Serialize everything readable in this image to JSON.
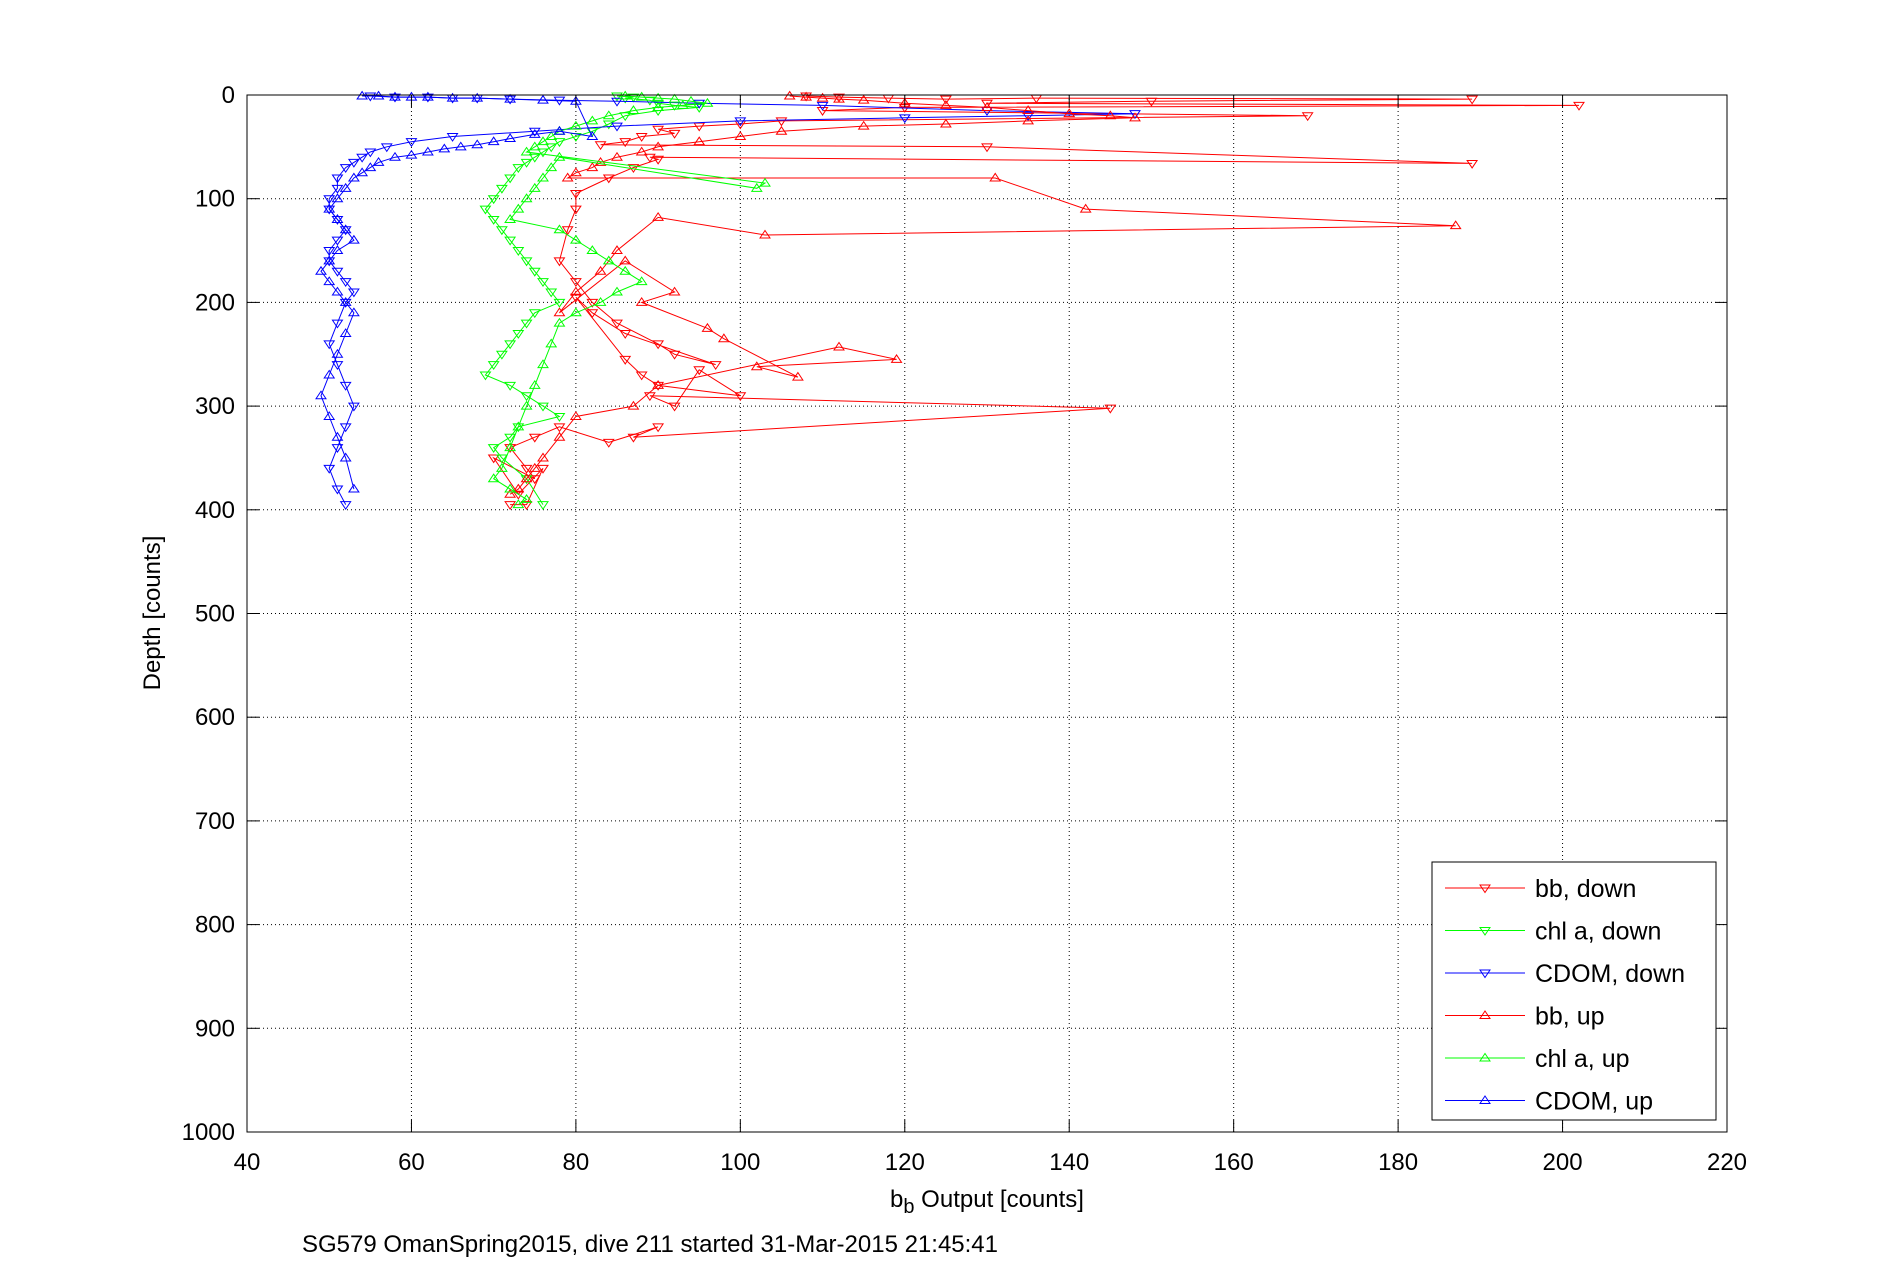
{
  "chart_data": {
    "type": "scatter",
    "title": "",
    "xlabel_main": "b",
    "xlabel_sub": "b",
    "xlabel_rest": " Output [counts]",
    "ylabel": "Depth [counts]",
    "caption": "SG579 OmanSpring2015, dive 211 started 31-Mar-2015 21:45:41",
    "xlim": [
      40,
      220
    ],
    "ylim": [
      0,
      1000
    ],
    "y_reversed": true,
    "grid": true,
    "legend_position": "bottom-right",
    "xticks": [
      "40",
      "60",
      "80",
      "100",
      "120",
      "140",
      "160",
      "180",
      "200",
      "220"
    ],
    "yticks": [
      "0",
      "100",
      "200",
      "300",
      "400",
      "500",
      "600",
      "700",
      "800",
      "900",
      "1000"
    ],
    "series": [
      {
        "name": "bb, down",
        "color": "#ff0000",
        "marker": "triangle-down",
        "x": [
          108,
          112,
          118,
          125,
          136,
          189,
          150,
          130,
          202,
          120,
          110,
          169,
          105,
          100,
          95,
          90,
          92,
          88,
          86,
          83,
          130,
          189,
          89,
          90,
          87,
          84,
          80,
          80,
          79,
          78,
          80,
          82,
          85,
          90,
          92,
          97,
          86,
          82,
          80,
          86,
          88,
          90,
          100,
          95,
          92,
          89,
          145,
          87,
          90,
          84,
          78,
          75,
          72,
          74,
          75,
          70,
          73,
          76,
          74,
          72
        ],
        "y": [
          1,
          2,
          3,
          4,
          3,
          4,
          6,
          8,
          10,
          12,
          15,
          20,
          25,
          28,
          30,
          33,
          37,
          40,
          45,
          48,
          50,
          66,
          60,
          62,
          70,
          80,
          95,
          110,
          130,
          160,
          180,
          200,
          220,
          240,
          250,
          260,
          230,
          210,
          195,
          255,
          270,
          280,
          290,
          265,
          300,
          290,
          302,
          330,
          320,
          335,
          320,
          330,
          340,
          360,
          370,
          350,
          385,
          360,
          395,
          395
        ]
      },
      {
        "name": "chl a, down",
        "color": "#00ff00",
        "marker": "triangle-down",
        "x": [
          85,
          87,
          86,
          89,
          90,
          92,
          95,
          90,
          86,
          84,
          82,
          80,
          78,
          77,
          76,
          75,
          74,
          73,
          72,
          71,
          70,
          69,
          70,
          71,
          72,
          73,
          74,
          75,
          76,
          77,
          78,
          75,
          74,
          73,
          72,
          71,
          70,
          69,
          72,
          74,
          76,
          78,
          73,
          72,
          70,
          71,
          74,
          76
        ],
        "y": [
          1,
          2,
          3,
          5,
          8,
          10,
          12,
          15,
          20,
          28,
          35,
          40,
          45,
          50,
          55,
          60,
          65,
          70,
          80,
          90,
          100,
          110,
          120,
          130,
          140,
          150,
          160,
          170,
          180,
          190,
          200,
          210,
          220,
          230,
          240,
          250,
          260,
          270,
          280,
          290,
          300,
          310,
          320,
          330,
          340,
          350,
          370,
          395
        ]
      },
      {
        "name": "CDOM, down",
        "color": "#0000ff",
        "marker": "triangle-down",
        "x": [
          55,
          58,
          62,
          65,
          68,
          72,
          78,
          85,
          95,
          110,
          130,
          148,
          135,
          120,
          100,
          85,
          75,
          65,
          60,
          57,
          55,
          54,
          53,
          52,
          51,
          51,
          50,
          50,
          51,
          52,
          51,
          50,
          50,
          51,
          52,
          53,
          52,
          51,
          50,
          51,
          52,
          53,
          52,
          51,
          50,
          51,
          52
        ],
        "y": [
          1,
          2,
          2,
          3,
          3,
          4,
          5,
          6,
          8,
          10,
          15,
          18,
          20,
          22,
          25,
          30,
          35,
          40,
          45,
          50,
          55,
          60,
          65,
          70,
          80,
          90,
          100,
          110,
          120,
          130,
          140,
          150,
          160,
          170,
          180,
          190,
          200,
          220,
          240,
          260,
          280,
          300,
          320,
          340,
          360,
          380,
          395
        ]
      },
      {
        "name": "bb, up",
        "color": "#ff0000",
        "marker": "triangle-up",
        "x": [
          106,
          108,
          110,
          112,
          115,
          120,
          125,
          130,
          135,
          140,
          145,
          148,
          135,
          125,
          115,
          105,
          100,
          95,
          90,
          88,
          85,
          83,
          82,
          80,
          79,
          131,
          142,
          187,
          103,
          90,
          85,
          83,
          80,
          78,
          86,
          92,
          88,
          96,
          98,
          107,
          102,
          119,
          112,
          90,
          87,
          80,
          78,
          76,
          75,
          74,
          73,
          72
        ],
        "y": [
          1,
          2,
          3,
          4,
          5,
          8,
          10,
          12,
          15,
          18,
          20,
          22,
          25,
          28,
          30,
          35,
          40,
          45,
          50,
          55,
          60,
          65,
          70,
          75,
          80,
          80,
          110,
          126,
          135,
          118,
          150,
          170,
          190,
          210,
          160,
          190,
          200,
          225,
          235,
          272,
          262,
          255,
          243,
          280,
          300,
          310,
          330,
          350,
          360,
          370,
          380,
          385
        ]
      },
      {
        "name": "chl a, up",
        "color": "#00ff00",
        "marker": "triangle-up",
        "x": [
          86,
          88,
          90,
          92,
          94,
          96,
          93,
          90,
          87,
          84,
          82,
          80,
          78,
          77,
          76,
          75,
          74,
          103,
          102,
          78,
          77,
          76,
          75,
          74,
          73,
          72,
          78,
          80,
          82,
          84,
          86,
          88,
          85,
          83,
          80,
          78,
          77,
          76,
          75,
          74,
          73,
          72,
          71,
          70,
          72,
          74,
          73
        ],
        "y": [
          1,
          2,
          3,
          4,
          6,
          8,
          10,
          12,
          15,
          20,
          25,
          30,
          35,
          40,
          45,
          50,
          55,
          85,
          90,
          60,
          70,
          80,
          90,
          100,
          110,
          120,
          130,
          140,
          150,
          160,
          170,
          180,
          190,
          200,
          210,
          220,
          240,
          260,
          280,
          300,
          320,
          340,
          360,
          370,
          380,
          390,
          395
        ]
      },
      {
        "name": "CDOM, up",
        "color": "#0000ff",
        "marker": "triangle-up",
        "x": [
          54,
          56,
          58,
          60,
          62,
          65,
          68,
          72,
          76,
          80,
          82,
          78,
          75,
          72,
          70,
          68,
          66,
          64,
          62,
          60,
          58,
          56,
          55,
          54,
          53,
          52,
          51,
          50,
          51,
          52,
          53,
          51,
          50,
          49,
          50,
          51,
          52,
          53,
          52,
          51,
          50,
          49,
          50,
          51,
          52,
          53
        ],
        "y": [
          1,
          1,
          2,
          2,
          2,
          3,
          3,
          4,
          5,
          6,
          40,
          35,
          38,
          42,
          45,
          48,
          50,
          52,
          55,
          58,
          60,
          65,
          70,
          75,
          80,
          90,
          100,
          110,
          120,
          130,
          140,
          150,
          160,
          170,
          180,
          190,
          200,
          210,
          230,
          250,
          270,
          290,
          310,
          330,
          350,
          380
        ]
      }
    ]
  }
}
